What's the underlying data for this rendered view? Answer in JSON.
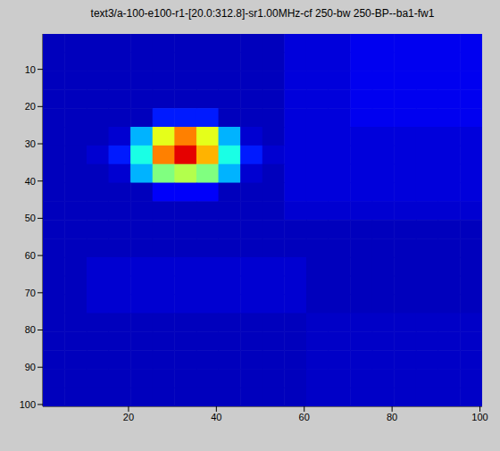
{
  "chart_data": {
    "type": "heatmap",
    "title": "text3/a-100-e100-r1-[20.0:312.8]-sr1.00MHz-cf 250-bw 250-BP--ba1-fw1",
    "x": [
      3,
      8,
      13,
      18,
      23,
      28,
      33,
      38,
      43,
      48,
      53,
      58,
      63,
      68,
      73,
      78,
      83,
      88,
      93,
      98
    ],
    "y": [
      3,
      8,
      13,
      18,
      23,
      28,
      33,
      38,
      43,
      48,
      53,
      58,
      63,
      68,
      73,
      78,
      83,
      88,
      93,
      98
    ],
    "xlim": [
      0.5,
      100.5
    ],
    "ylim": [
      0.5,
      100.5
    ],
    "xticks": [
      20,
      40,
      60,
      80,
      100
    ],
    "yticks": [
      10,
      20,
      30,
      40,
      50,
      60,
      70,
      80,
      90,
      100
    ],
    "zlim": [
      0,
      1
    ],
    "cells": [
      [
        0.06,
        0.06,
        0.06,
        0.06,
        0.06,
        0.06,
        0.06,
        0.06,
        0.06,
        0.06,
        0.06,
        0.09,
        0.09,
        0.09,
        0.11,
        0.11,
        0.11,
        0.11,
        0.11,
        0.11
      ],
      [
        0.06,
        0.06,
        0.06,
        0.06,
        0.06,
        0.06,
        0.06,
        0.06,
        0.06,
        0.06,
        0.06,
        0.09,
        0.09,
        0.09,
        0.11,
        0.11,
        0.11,
        0.11,
        0.11,
        0.11
      ],
      [
        0.06,
        0.06,
        0.06,
        0.06,
        0.06,
        0.06,
        0.06,
        0.06,
        0.06,
        0.06,
        0.06,
        0.09,
        0.09,
        0.09,
        0.11,
        0.11,
        0.11,
        0.11,
        0.11,
        0.11
      ],
      [
        0.06,
        0.06,
        0.06,
        0.06,
        0.06,
        0.06,
        0.06,
        0.06,
        0.06,
        0.06,
        0.06,
        0.09,
        0.09,
        0.09,
        0.11,
        0.11,
        0.11,
        0.11,
        0.11,
        0.11
      ],
      [
        0.06,
        0.06,
        0.06,
        0.06,
        0.06,
        0.15,
        0.15,
        0.15,
        0.06,
        0.06,
        0.06,
        0.09,
        0.09,
        0.09,
        0.11,
        0.11,
        0.11,
        0.11,
        0.11,
        0.11
      ],
      [
        0.06,
        0.06,
        0.06,
        0.08,
        0.3,
        0.6,
        0.75,
        0.6,
        0.3,
        0.08,
        0.06,
        0.09,
        0.09,
        0.09,
        0.09,
        0.09,
        0.09,
        0.09,
        0.09,
        0.09
      ],
      [
        0.06,
        0.06,
        0.08,
        0.15,
        0.4,
        0.75,
        0.9,
        0.7,
        0.4,
        0.15,
        0.08,
        0.09,
        0.09,
        0.09,
        0.09,
        0.09,
        0.09,
        0.09,
        0.09,
        0.09
      ],
      [
        0.06,
        0.06,
        0.06,
        0.08,
        0.3,
        0.5,
        0.55,
        0.5,
        0.3,
        0.08,
        0.06,
        0.09,
        0.09,
        0.09,
        0.09,
        0.09,
        0.09,
        0.09,
        0.09,
        0.09
      ],
      [
        0.06,
        0.06,
        0.06,
        0.06,
        0.06,
        0.12,
        0.12,
        0.12,
        0.06,
        0.06,
        0.06,
        0.09,
        0.09,
        0.09,
        0.09,
        0.09,
        0.09,
        0.09,
        0.09,
        0.09
      ],
      [
        0.06,
        0.06,
        0.06,
        0.06,
        0.06,
        0.06,
        0.06,
        0.06,
        0.06,
        0.06,
        0.06,
        0.08,
        0.08,
        0.08,
        0.08,
        0.08,
        0.08,
        0.08,
        0.08,
        0.08
      ],
      [
        0.06,
        0.06,
        0.06,
        0.06,
        0.06,
        0.06,
        0.06,
        0.06,
        0.06,
        0.06,
        0.06,
        0.06,
        0.06,
        0.06,
        0.06,
        0.06,
        0.06,
        0.06,
        0.06,
        0.06
      ],
      [
        0.06,
        0.06,
        0.06,
        0.06,
        0.06,
        0.06,
        0.06,
        0.06,
        0.06,
        0.06,
        0.06,
        0.06,
        0.06,
        0.06,
        0.06,
        0.06,
        0.06,
        0.06,
        0.06,
        0.06
      ],
      [
        0.06,
        0.06,
        0.08,
        0.08,
        0.08,
        0.08,
        0.08,
        0.08,
        0.08,
        0.08,
        0.08,
        0.08,
        0.06,
        0.06,
        0.06,
        0.06,
        0.06,
        0.06,
        0.06,
        0.06
      ],
      [
        0.06,
        0.06,
        0.08,
        0.08,
        0.08,
        0.08,
        0.08,
        0.08,
        0.08,
        0.08,
        0.08,
        0.08,
        0.06,
        0.06,
        0.06,
        0.06,
        0.06,
        0.06,
        0.06,
        0.06
      ],
      [
        0.06,
        0.06,
        0.08,
        0.08,
        0.08,
        0.08,
        0.08,
        0.08,
        0.08,
        0.08,
        0.08,
        0.08,
        0.06,
        0.06,
        0.06,
        0.06,
        0.06,
        0.06,
        0.06,
        0.06
      ],
      [
        0.06,
        0.06,
        0.06,
        0.06,
        0.06,
        0.06,
        0.06,
        0.06,
        0.06,
        0.06,
        0.06,
        0.06,
        0.07,
        0.07,
        0.07,
        0.07,
        0.07,
        0.07,
        0.07,
        0.07
      ],
      [
        0.06,
        0.06,
        0.06,
        0.06,
        0.06,
        0.06,
        0.06,
        0.06,
        0.06,
        0.06,
        0.06,
        0.06,
        0.07,
        0.07,
        0.07,
        0.07,
        0.07,
        0.07,
        0.07,
        0.07
      ],
      [
        0.06,
        0.06,
        0.06,
        0.06,
        0.06,
        0.06,
        0.06,
        0.06,
        0.06,
        0.06,
        0.06,
        0.06,
        0.07,
        0.07,
        0.07,
        0.07,
        0.07,
        0.07,
        0.07,
        0.07
      ],
      [
        0.06,
        0.06,
        0.06,
        0.06,
        0.06,
        0.06,
        0.06,
        0.06,
        0.06,
        0.06,
        0.06,
        0.06,
        0.07,
        0.07,
        0.07,
        0.07,
        0.07,
        0.07,
        0.07,
        0.07
      ],
      [
        0.06,
        0.06,
        0.06,
        0.06,
        0.06,
        0.06,
        0.06,
        0.06,
        0.06,
        0.06,
        0.06,
        0.06,
        0.07,
        0.07,
        0.07,
        0.07,
        0.07,
        0.07,
        0.07,
        0.07
      ]
    ]
  }
}
